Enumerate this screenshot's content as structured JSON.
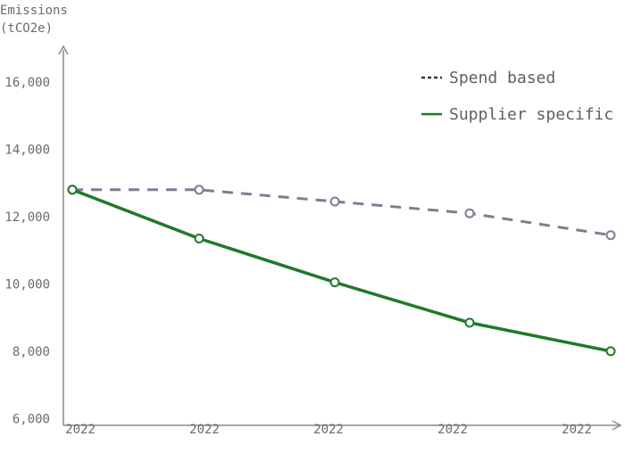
{
  "chart_data": {
    "type": "line",
    "ylabel_line1": "Emissions",
    "ylabel_line2": "(tCO2e)",
    "ylim": [
      6000,
      17000
    ],
    "yticks": [
      6000,
      8000,
      10000,
      12000,
      14000,
      16000
    ],
    "ytick_labels": [
      "6,000",
      "8,000",
      "10,000",
      "12,000",
      "14,000",
      "16,000"
    ],
    "categories": [
      "2022",
      "2022",
      "2022",
      "2022",
      "2022"
    ],
    "grid": false,
    "legend_position": "top-right",
    "series": [
      {
        "name": "Spend based",
        "style": "dashed",
        "color": "#7b7f93",
        "legend_color": "#333333",
        "values": [
          12800,
          12800,
          12450,
          12100,
          11450
        ]
      },
      {
        "name": "Supplier specific",
        "style": "solid",
        "color": "#1e7a2a",
        "legend_color": "#1e7a2a",
        "values": [
          12800,
          11350,
          10050,
          8850,
          8000
        ]
      }
    ]
  }
}
